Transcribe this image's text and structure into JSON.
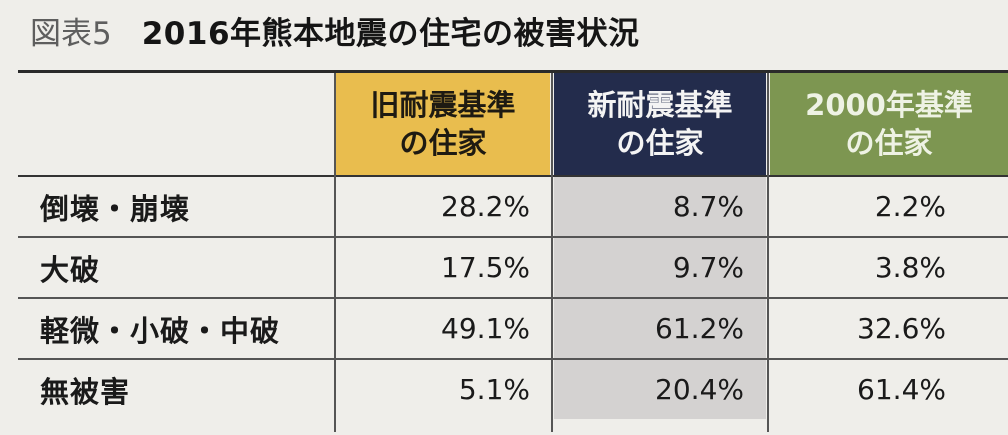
{
  "title": {
    "label": "図表5",
    "text": "2016年熊本地震の住宅の被害状況"
  },
  "columns": [
    {
      "line1": "旧耐震基準",
      "line2": "の住家",
      "color": "#e9bd4e"
    },
    {
      "line1": "新耐震基準",
      "line2": "の住家",
      "color": "#232c4c"
    },
    {
      "line1": "2000年基準",
      "line2": "の住家",
      "color": "#7d9651"
    }
  ],
  "rows": [
    {
      "label": "倒壊・崩壊",
      "values": [
        "28.2%",
        "8.7%",
        "2.2%"
      ]
    },
    {
      "label": "大破",
      "values": [
        "17.5%",
        "9.7%",
        "3.8%"
      ]
    },
    {
      "label": "軽微・小破・中破",
      "values": [
        "49.1%",
        "61.2%",
        "32.6%"
      ]
    },
    {
      "label": "無被害",
      "values": [
        "5.1%",
        "20.4%",
        "61.4%"
      ]
    }
  ]
}
